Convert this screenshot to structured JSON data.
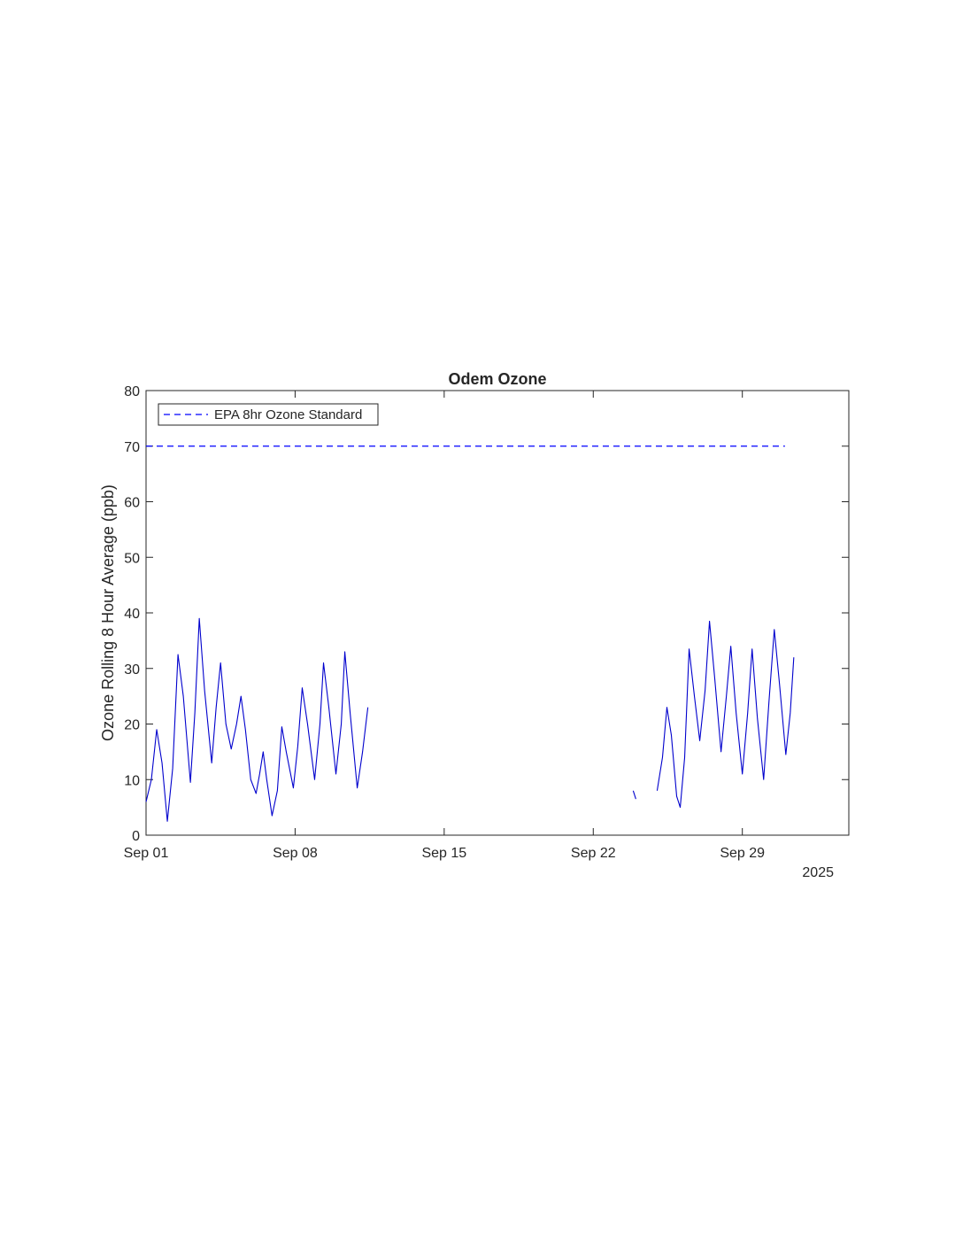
{
  "chart_data": {
    "type": "line",
    "title": "Odem Ozone",
    "xlabel": "",
    "ylabel": "Ozone Rolling 8 Hour Average (ppb)",
    "x_axis_secondary_label": "2025",
    "xlim": [
      "2025-09-01",
      "2025-10-04"
    ],
    "ylim": [
      0,
      80
    ],
    "x_ticks": [
      {
        "date": "2025-09-01",
        "label": "Sep 01"
      },
      {
        "date": "2025-09-08",
        "label": "Sep 08"
      },
      {
        "date": "2025-09-15",
        "label": "Sep 15"
      },
      {
        "date": "2025-09-22",
        "label": "Sep 22"
      },
      {
        "date": "2025-09-29",
        "label": "Sep 29"
      }
    ],
    "y_ticks": [
      0,
      10,
      20,
      30,
      40,
      50,
      60,
      70,
      80
    ],
    "grid": false,
    "legend_position": "top-left",
    "reference_lines": [
      {
        "name": "EPA 8hr Ozone Standard",
        "y": 70,
        "x_start": "2025-09-01",
        "x_end": "2025-10-01",
        "style": "dashed",
        "color": "#0000ff"
      }
    ],
    "series": [
      {
        "color": "#0000cd",
        "segments": [
          [
            [
              "2025-09-01 00:00",
              6.0
            ],
            [
              "2025-09-01 06:00",
              10.0
            ],
            [
              "2025-09-01 12:00",
              19.0
            ],
            [
              "2025-09-01 18:00",
              13.0
            ],
            [
              "2025-09-02 00:00",
              2.5
            ],
            [
              "2025-09-02 06:00",
              12.0
            ],
            [
              "2025-09-02 12:00",
              32.5
            ],
            [
              "2025-09-02 18:00",
              25.0
            ],
            [
              "2025-09-03 02:00",
              9.5
            ],
            [
              "2025-09-03 07:00",
              22.0
            ],
            [
              "2025-09-03 12:00",
              39.0
            ],
            [
              "2025-09-03 18:00",
              26.0
            ],
            [
              "2025-09-04 02:00",
              13.0
            ],
            [
              "2025-09-04 07:00",
              23.0
            ],
            [
              "2025-09-04 12:00",
              31.0
            ],
            [
              "2025-09-04 18:00",
              20.0
            ],
            [
              "2025-09-05 00:00",
              15.5
            ],
            [
              "2025-09-05 06:00",
              20.0
            ],
            [
              "2025-09-05 11:00",
              25.0
            ],
            [
              "2025-09-05 16:00",
              19.0
            ],
            [
              "2025-09-05 22:00",
              10.0
            ],
            [
              "2025-09-06 04:00",
              7.5
            ],
            [
              "2025-09-06 08:00",
              11.0
            ],
            [
              "2025-09-06 12:00",
              15.0
            ],
            [
              "2025-09-06 16:00",
              10.0
            ],
            [
              "2025-09-06 22:00",
              3.5
            ],
            [
              "2025-09-07 04:00",
              8.0
            ],
            [
              "2025-09-07 09:00",
              19.5
            ],
            [
              "2025-09-07 14:00",
              15.0
            ],
            [
              "2025-09-07 22:00",
              8.5
            ],
            [
              "2025-09-08 03:00",
              16.0
            ],
            [
              "2025-09-08 08:00",
              26.5
            ],
            [
              "2025-09-08 14:00",
              20.0
            ],
            [
              "2025-09-08 22:00",
              10.0
            ],
            [
              "2025-09-09 04:00",
              20.0
            ],
            [
              "2025-09-09 08:00",
              31.0
            ],
            [
              "2025-09-09 14:00",
              23.0
            ],
            [
              "2025-09-09 22:00",
              11.0
            ],
            [
              "2025-09-10 04:00",
              20.0
            ],
            [
              "2025-09-10 08:00",
              33.0
            ],
            [
              "2025-09-10 14:00",
              22.0
            ],
            [
              "2025-09-10 22:00",
              8.5
            ],
            [
              "2025-09-11 04:00",
              15.0
            ],
            [
              "2025-09-11 10:00",
              23.0
            ]
          ],
          [
            [
              "2025-09-23 21:00",
              8.0
            ],
            [
              "2025-09-24 00:00",
              6.5
            ]
          ],
          [
            [
              "2025-09-25 00:00",
              8.0
            ],
            [
              "2025-09-25 06:00",
              14.0
            ],
            [
              "2025-09-25 11:00",
              23.0
            ],
            [
              "2025-09-25 16:00",
              18.0
            ],
            [
              "2025-09-25 22:00",
              7.0
            ],
            [
              "2025-09-26 02:00",
              5.0
            ],
            [
              "2025-09-26 07:00",
              14.0
            ],
            [
              "2025-09-26 12:00",
              33.5
            ],
            [
              "2025-09-26 18:00",
              25.0
            ],
            [
              "2025-09-27 00:00",
              17.0
            ],
            [
              "2025-09-27 06:00",
              26.0
            ],
            [
              "2025-09-27 11:00",
              38.5
            ],
            [
              "2025-09-27 17:00",
              28.0
            ],
            [
              "2025-09-28 00:00",
              15.0
            ],
            [
              "2025-09-28 06:00",
              25.0
            ],
            [
              "2025-09-28 11:00",
              34.0
            ],
            [
              "2025-09-28 17:00",
              22.0
            ],
            [
              "2025-09-29 00:00",
              11.0
            ],
            [
              "2025-09-29 06:00",
              22.0
            ],
            [
              "2025-09-29 11:00",
              33.5
            ],
            [
              "2025-09-29 17:00",
              21.0
            ],
            [
              "2025-09-30 00:00",
              10.0
            ],
            [
              "2025-09-30 06:00",
              24.0
            ],
            [
              "2025-09-30 12:00",
              37.0
            ],
            [
              "2025-09-30 18:00",
              27.0
            ],
            [
              "2025-10-01 01:00",
              14.5
            ],
            [
              "2025-10-01 06:00",
              22.0
            ],
            [
              "2025-10-01 10:00",
              32.0
            ]
          ]
        ]
      }
    ]
  }
}
